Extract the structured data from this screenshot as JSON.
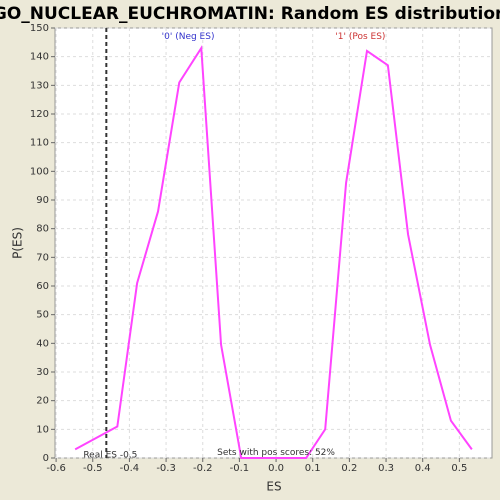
{
  "chart_data": {
    "type": "line",
    "title": "GO_NUCLEAR_EUCHROMATIN: Random ES distribution",
    "x_label": "ES",
    "y_label": "P(ES)",
    "series": [
      {
        "name": "P(ES)",
        "color": "#ff44ff",
        "x": [
          -0.548,
          -0.433,
          -0.379,
          -0.322,
          -0.264,
          -0.204,
          -0.15,
          -0.095,
          -0.04,
          0.02,
          0.082,
          0.134,
          0.191,
          0.248,
          0.305,
          0.36,
          0.42,
          0.477,
          0.534
        ],
        "values": [
          3,
          11,
          61,
          86,
          131,
          143,
          39.5,
          0,
          0,
          0,
          0,
          10,
          96,
          142,
          137,
          78,
          39.5,
          13,
          3
        ]
      }
    ],
    "xlim": [
      -0.603,
      0.589
    ],
    "ylim": [
      0,
      150
    ],
    "xticks": [
      -0.6,
      -0.5,
      -0.4,
      -0.3,
      -0.2,
      -0.1,
      {
        "value": 0,
        "label": "0.0"
      },
      0.1,
      0.2,
      0.3,
      0.4,
      0.5
    ],
    "yticks": [
      0,
      10,
      20,
      30,
      40,
      50,
      60,
      70,
      80,
      90,
      100,
      110,
      120,
      130,
      140,
      150
    ],
    "grid": true,
    "real_es": {
      "value": -0.463,
      "label": "Real ES -0.5"
    },
    "annotations": [
      {
        "text": "'0' (Neg ES)",
        "x": -0.24,
        "y": 147,
        "color": "#3333cc"
      },
      {
        "text": "'1' (Pos ES)",
        "x": 0.23,
        "y": 147,
        "color": "#cc3333"
      },
      {
        "text": "Sets with pos scores: 52%",
        "x": 0.0,
        "y": 2,
        "color": "#333333"
      }
    ]
  }
}
